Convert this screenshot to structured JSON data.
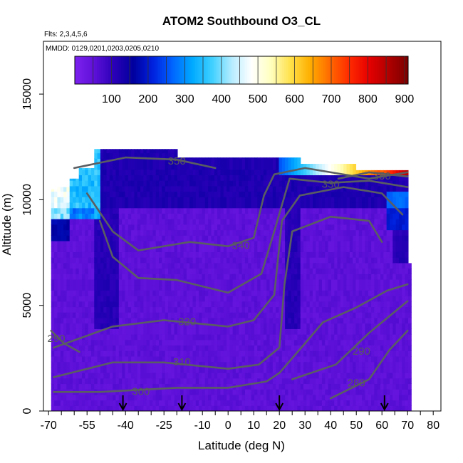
{
  "chart_data": {
    "type": "heatmap",
    "title": "ATOM2 Southbound O3_CL",
    "flights_note": "Flts: 2,3,4,5,6",
    "dates_note": "MMDD: 0129,0201,0203,0205,0210",
    "xlabel": "Latitude (deg N)",
    "ylabel": "Altitude (m)",
    "xlim": [
      -72,
      83
    ],
    "ylim": [
      0,
      17500
    ],
    "x_ticks": [
      "-70",
      "-55",
      "-40",
      "-25",
      "-10",
      "0",
      "10",
      "20",
      "30",
      "40",
      "50",
      "60",
      "70",
      "80"
    ],
    "x_tick_values": [
      -70,
      -55,
      -40,
      -25,
      -10,
      0,
      10,
      20,
      30,
      40,
      50,
      60,
      70,
      80
    ],
    "y_ticks": [
      "0",
      "5000",
      "10000",
      "15000"
    ],
    "y_tick_values": [
      0,
      5000,
      10000,
      15000
    ],
    "colorbar": {
      "range": [
        0,
        910
      ],
      "ticks": [
        "100",
        "200",
        "300",
        "400",
        "500",
        "600",
        "700",
        "800",
        "900"
      ],
      "tick_values": [
        100,
        200,
        300,
        400,
        500,
        600,
        700,
        800,
        900
      ],
      "colors": [
        "#7e22f0",
        "#5d10d8",
        "#2a00b8",
        "#00009e",
        "#0022e0",
        "#0066ff",
        "#00aaff",
        "#3fd0ff",
        "#b5ecff",
        "#ffffff",
        "#ffffbf",
        "#ffe14a",
        "#ffae00",
        "#ff6a00",
        "#ff2a00",
        "#e60000",
        "#b00000",
        "#7a0000"
      ]
    },
    "contour_lines": [
      {
        "label": "280",
        "label_at": [
          50,
          1300
        ],
        "points": [
          [
            40,
            600
          ],
          [
            55,
            1500
          ],
          [
            63,
            2900
          ],
          [
            70,
            3800
          ]
        ]
      },
      {
        "label": "290",
        "label_at": [
          52,
          2800
        ],
        "points": [
          [
            25,
            1500
          ],
          [
            42,
            2200
          ],
          [
            55,
            3700
          ],
          [
            65,
            4700
          ],
          [
            70,
            5200
          ]
        ]
      },
      {
        "label": "300",
        "label_at": [
          -34,
          900
        ],
        "points": [
          [
            -68,
            900
          ],
          [
            -50,
            900
          ],
          [
            -20,
            1100
          ],
          [
            0,
            1100
          ],
          [
            15,
            1400
          ],
          [
            20,
            1800
          ],
          [
            30,
            3200
          ],
          [
            37,
            4200
          ],
          [
            50,
            4900
          ],
          [
            62,
            5700
          ],
          [
            70,
            6000
          ]
        ]
      },
      {
        "label": "310",
        "label_at": [
          -18,
          2300
        ],
        "points": [
          [
            -68,
            1600
          ],
          [
            -45,
            2300
          ],
          [
            -25,
            2300
          ],
          [
            0,
            2000
          ],
          [
            12,
            2200
          ],
          [
            20,
            3000
          ],
          [
            22,
            6000
          ],
          [
            25,
            8500
          ],
          [
            40,
            9200
          ],
          [
            55,
            9000
          ],
          [
            60,
            8000
          ]
        ]
      },
      {
        "label": "320",
        "label_at": [
          -16,
          4200
        ],
        "points": [
          [
            -68,
            3000
          ],
          [
            -45,
            4000
          ],
          [
            -25,
            4300
          ],
          [
            0,
            4000
          ],
          [
            10,
            4300
          ],
          [
            18,
            5500
          ],
          [
            21,
            9000
          ],
          [
            28,
            10200
          ],
          [
            45,
            10600
          ],
          [
            60,
            10300
          ],
          [
            68,
            9300
          ]
        ]
      },
      {
        "label": "330",
        "label_at": [
          40,
          10700
        ],
        "points": [
          [
            -50,
            9000
          ],
          [
            -45,
            7300
          ],
          [
            -35,
            6300
          ],
          [
            -20,
            6200
          ],
          [
            0,
            5600
          ],
          [
            13,
            6500
          ],
          [
            18,
            8500
          ],
          [
            24,
            11000
          ],
          [
            40,
            10800
          ],
          [
            55,
            10900
          ],
          [
            70,
            10600
          ]
        ]
      },
      {
        "label": "340",
        "label_at": [
          5,
          7800
        ],
        "points": [
          [
            -55,
            10300
          ],
          [
            -45,
            8500
          ],
          [
            -35,
            7600
          ],
          [
            -15,
            8000
          ],
          [
            0,
            7800
          ],
          [
            10,
            8200
          ],
          [
            14,
            10200
          ],
          [
            18,
            11200
          ],
          [
            30,
            11500
          ],
          [
            55,
            11000
          ],
          [
            70,
            11300
          ]
        ]
      },
      {
        "label": "350",
        "label_at": [
          -20,
          11800
        ],
        "points": [
          [
            -60,
            11500
          ],
          [
            -40,
            12000
          ],
          [
            -20,
            11900
          ],
          [
            -5,
            11500
          ]
        ]
      },
      {
        "label": "290",
        "label_at": [
          -67,
          3400
        ],
        "points": [
          [
            -69,
            3800
          ],
          [
            -64,
            3200
          ],
          [
            -58,
            2800
          ]
        ]
      },
      {
        "label": "350",
        "label_at": [
          60,
          11100
        ],
        "points": [
          [
            43,
            11000
          ],
          [
            55,
            11300
          ],
          [
            70,
            11100
          ]
        ]
      }
    ],
    "markers_lat": [
      -41,
      -18,
      20,
      61
    ],
    "color_note": "Mostly purple/blue (O3 ~ 20-150) across all latitudes below ~11 km; cyan/blue (~300) near 10-12 km poleward of 50S; white-yellow-orange-red (500-800) near 11 km at 60-70N."
  }
}
